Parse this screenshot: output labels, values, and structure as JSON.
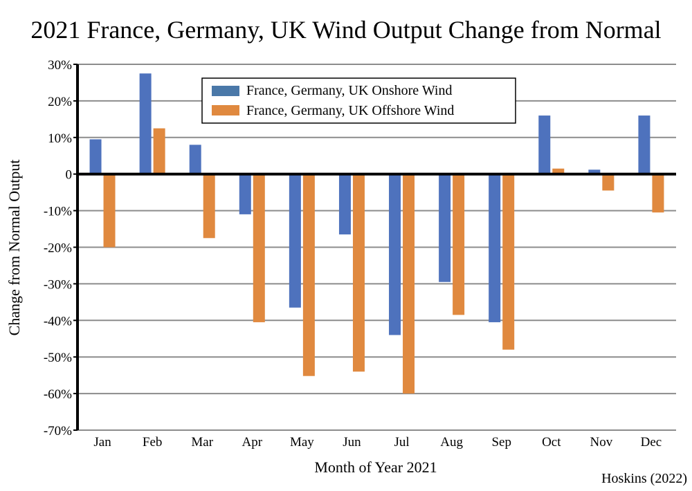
{
  "chart_data": {
    "type": "bar",
    "title": "2021 France, Germany, UK Wind Output Change from Normal",
    "xlabel": "Month of Year 2021",
    "ylabel": "Change from Normal Output",
    "source": "Hoskins (2022)",
    "categories": [
      "Jan",
      "Feb",
      "Mar",
      "Apr",
      "May",
      "Jun",
      "Jul",
      "Aug",
      "Sep",
      "Oct",
      "Nov",
      "Dec"
    ],
    "series": [
      {
        "name": "France, Germany, UK Onshore Wind",
        "color": "#4e72bd",
        "legend_color": "#4a78a8",
        "values": [
          9.5,
          27.5,
          8,
          -11,
          -36.5,
          -16.5,
          -44,
          -29.5,
          -40.5,
          16,
          1.2,
          16
        ]
      },
      {
        "name": "France, Germany, UK Offshore Wind",
        "color": "#e0893f",
        "legend_color": "#e0893f",
        "values": [
          -20,
          12.5,
          -17.5,
          -40.5,
          -55.2,
          -54,
          -60,
          -38.5,
          -48,
          1.5,
          -4.5,
          -10.5
        ]
      }
    ],
    "ylim": [
      -70,
      30
    ],
    "yticks": [
      30,
      20,
      10,
      0,
      -10,
      -20,
      -30,
      -40,
      -50,
      -60,
      -70
    ],
    "ytick_labels": [
      "30%",
      "20%",
      "10%",
      "0",
      "-10%",
      "-20%",
      "-30%",
      "-40%",
      "-50%",
      "-60%",
      "-70%"
    ],
    "grid": true,
    "legend_position": "top-center"
  }
}
